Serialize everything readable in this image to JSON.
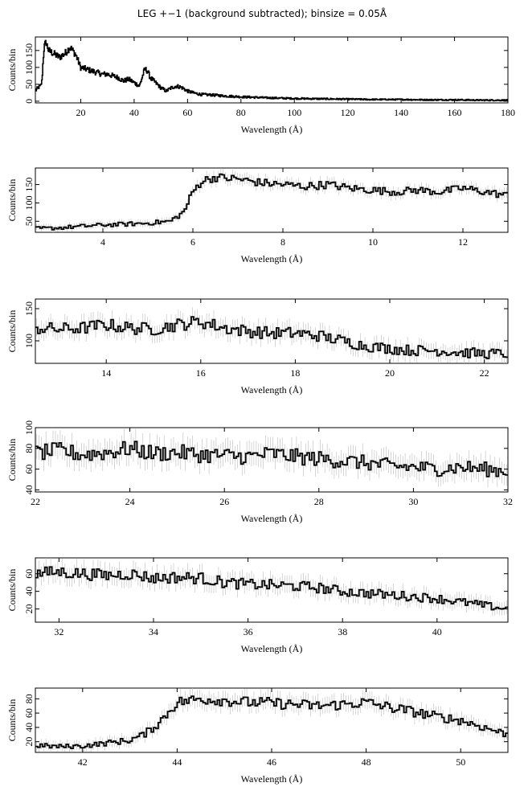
{
  "title": "LEG +−1 (background subtracted); binsize = 0.05Å",
  "chart_data": [
    {
      "type": "line",
      "xlabel": "Wavelength (Å)",
      "ylabel": "Counts/bin",
      "xlim": [
        3,
        180
      ],
      "ylim": [
        -5,
        190
      ],
      "xticks": [
        20,
        40,
        60,
        80,
        100,
        120,
        140,
        160,
        180
      ],
      "yticks": [
        0,
        50,
        100,
        150
      ],
      "series": [
        {
          "x": [
            3,
            4,
            5,
            5.5,
            6,
            6.3,
            7,
            8,
            10,
            12,
            14,
            15,
            16,
            17,
            18,
            20,
            22,
            24,
            26,
            28,
            30,
            32,
            34,
            36,
            38,
            40,
            42,
            43,
            44,
            45,
            46,
            48,
            50,
            52,
            54,
            56,
            58,
            60,
            62,
            65,
            70,
            75,
            80,
            90,
            100,
            110,
            120,
            130,
            140,
            150,
            160,
            170,
            180
          ],
          "y": [
            30,
            40,
            45,
            60,
            130,
            160,
            175,
            150,
            140,
            130,
            140,
            150,
            160,
            150,
            140,
            100,
            95,
            90,
            85,
            80,
            80,
            75,
            70,
            60,
            65,
            55,
            45,
            70,
            95,
            90,
            70,
            55,
            40,
            30,
            40,
            45,
            40,
            30,
            25,
            20,
            18,
            15,
            13,
            10,
            8,
            7,
            6,
            5,
            5,
            4,
            4,
            3,
            3
          ]
        }
      ]
    },
    {
      "type": "line",
      "xlabel": "Wavelength (Å)",
      "ylabel": "Counts/bin",
      "xlim": [
        2.5,
        13
      ],
      "ylim": [
        20,
        195
      ],
      "xticks": [
        4,
        6,
        8,
        10,
        12
      ],
      "yticks": [
        50,
        100,
        150
      ],
      "series": [
        {
          "x": [
            2.5,
            3,
            3.5,
            4,
            4.5,
            5,
            5.5,
            5.8,
            6,
            6.2,
            6.5,
            7,
            7.5,
            8,
            8.5,
            9,
            9.5,
            10,
            10.5,
            11,
            11.5,
            12,
            12.5,
            13
          ],
          "y": [
            30,
            32,
            36,
            40,
            42,
            45,
            50,
            75,
            130,
            160,
            170,
            165,
            155,
            150,
            145,
            150,
            140,
            135,
            130,
            135,
            130,
            140,
            130,
            120
          ]
        }
      ]
    },
    {
      "type": "line",
      "xlabel": "Wavelength (Å)",
      "ylabel": "Counts/bin",
      "xlim": [
        12.5,
        22.5
      ],
      "ylim": [
        65,
        165
      ],
      "xticks": [
        14,
        16,
        18,
        20,
        22
      ],
      "yticks": [
        100,
        150
      ],
      "series": [
        {
          "x": [
            12.5,
            13,
            13.5,
            14,
            14.5,
            15,
            15.5,
            16,
            16.5,
            17,
            17.5,
            18,
            18.5,
            19,
            19.5,
            20,
            20.5,
            21,
            21.5,
            22,
            22.5
          ],
          "y": [
            120,
            118,
            120,
            125,
            120,
            118,
            125,
            130,
            120,
            115,
            112,
            112,
            108,
            100,
            92,
            88,
            85,
            85,
            82,
            80,
            80
          ]
        }
      ]
    },
    {
      "type": "line",
      "xlabel": "Wavelength (Å)",
      "ylabel": "Counts/bin",
      "xlim": [
        22,
        32
      ],
      "ylim": [
        38,
        100
      ],
      "xticks": [
        22,
        24,
        26,
        28,
        30,
        32
      ],
      "yticks": [
        40,
        60,
        80,
        100
      ],
      "series": [
        {
          "x": [
            22,
            22.5,
            23,
            23.5,
            24,
            24.5,
            25,
            25.5,
            26,
            26.5,
            27,
            27.5,
            28,
            28.5,
            29,
            29.5,
            30,
            30.5,
            31,
            31.5,
            32
          ],
          "y": [
            75,
            78,
            74,
            76,
            80,
            75,
            76,
            74,
            73,
            72,
            75,
            72,
            70,
            68,
            66,
            63,
            62,
            60,
            62,
            60,
            58
          ]
        }
      ]
    },
    {
      "type": "line",
      "xlabel": "Wavelength (Å)",
      "ylabel": "Counts/bin",
      "xlim": [
        31.5,
        41.5
      ],
      "ylim": [
        5,
        78
      ],
      "xticks": [
        32,
        34,
        36,
        38,
        40
      ],
      "yticks": [
        20,
        40,
        60
      ],
      "series": [
        {
          "x": [
            31.5,
            32,
            32.5,
            33,
            33.5,
            34,
            34.5,
            35,
            35.5,
            36,
            36.5,
            37,
            37.5,
            38,
            38.5,
            39,
            39.5,
            40,
            40.5,
            41,
            41.5
          ],
          "y": [
            60,
            62,
            60,
            58,
            60,
            55,
            56,
            55,
            50,
            48,
            47,
            46,
            44,
            40,
            38,
            36,
            34,
            32,
            28,
            24,
            20
          ]
        }
      ]
    },
    {
      "type": "line",
      "xlabel": "Wavelength (Å)",
      "ylabel": "Counts/bin",
      "xlim": [
        41,
        51
      ],
      "ylim": [
        5,
        95
      ],
      "xticks": [
        42,
        44,
        46,
        48,
        50
      ],
      "yticks": [
        20,
        40,
        60,
        80
      ],
      "series": [
        {
          "x": [
            41,
            41.5,
            42,
            42.5,
            43,
            43.3,
            43.6,
            44,
            44.5,
            45,
            45.5,
            46,
            46.5,
            47,
            47.5,
            48,
            48.5,
            49,
            49.5,
            50,
            50.5,
            51
          ],
          "y": [
            15,
            13,
            14,
            18,
            22,
            30,
            45,
            75,
            80,
            78,
            75,
            74,
            72,
            70,
            72,
            75,
            68,
            62,
            55,
            50,
            40,
            30
          ]
        }
      ]
    }
  ]
}
